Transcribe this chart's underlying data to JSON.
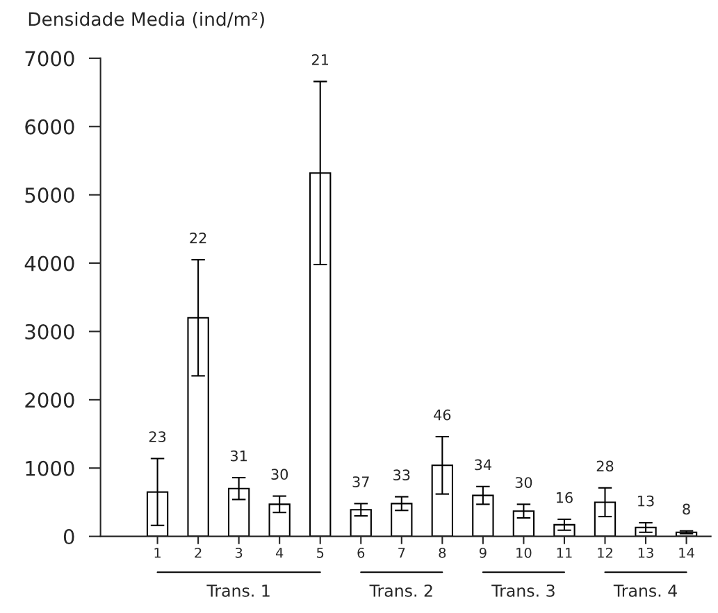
{
  "chart_data": {
    "type": "bar",
    "ylabel": "Densidade Media (ind/m²)",
    "categories": [
      "1",
      "2",
      "3",
      "4",
      "5",
      "6",
      "7",
      "8",
      "9",
      "10",
      "11",
      "12",
      "13",
      "14"
    ],
    "values": [
      650,
      3200,
      700,
      470,
      5320,
      390,
      480,
      1040,
      600,
      370,
      170,
      500,
      130,
      60
    ],
    "errors": [
      490,
      850,
      160,
      120,
      1340,
      90,
      100,
      420,
      130,
      100,
      80,
      210,
      70,
      20
    ],
    "color": "#ffffff",
    "ylim": [
      0,
      7000
    ],
    "yticks": [
      0,
      1000,
      2000,
      3000,
      4000,
      5000,
      6000,
      7000
    ],
    "grid": false,
    "legend": false,
    "annotations": [
      {
        "text": "23",
        "x": "1",
        "y": 1140
      },
      {
        "text": "22",
        "x": "2",
        "y": 4050
      },
      {
        "text": "31",
        "x": "3",
        "y": 860
      },
      {
        "text": "30",
        "x": "4",
        "y": 590
      },
      {
        "text": "21",
        "x": "5",
        "y": 6660
      },
      {
        "text": "37",
        "x": "6",
        "y": 480
      },
      {
        "text": "33",
        "x": "7",
        "y": 580
      },
      {
        "text": "46",
        "x": "8",
        "y": 1460
      },
      {
        "text": "34",
        "x": "9",
        "y": 730
      },
      {
        "text": "30",
        "x": "10",
        "y": 470
      },
      {
        "text": "16",
        "x": "11",
        "y": 250
      },
      {
        "text": "28",
        "x": "12",
        "y": 710
      },
      {
        "text": "13",
        "x": "13",
        "y": 200
      },
      {
        "text": "8",
        "x": "14",
        "y": 80
      },
      "Trans. 1",
      "Trans. 2",
      "Trans. 3",
      "Trans. 4"
    ]
  }
}
